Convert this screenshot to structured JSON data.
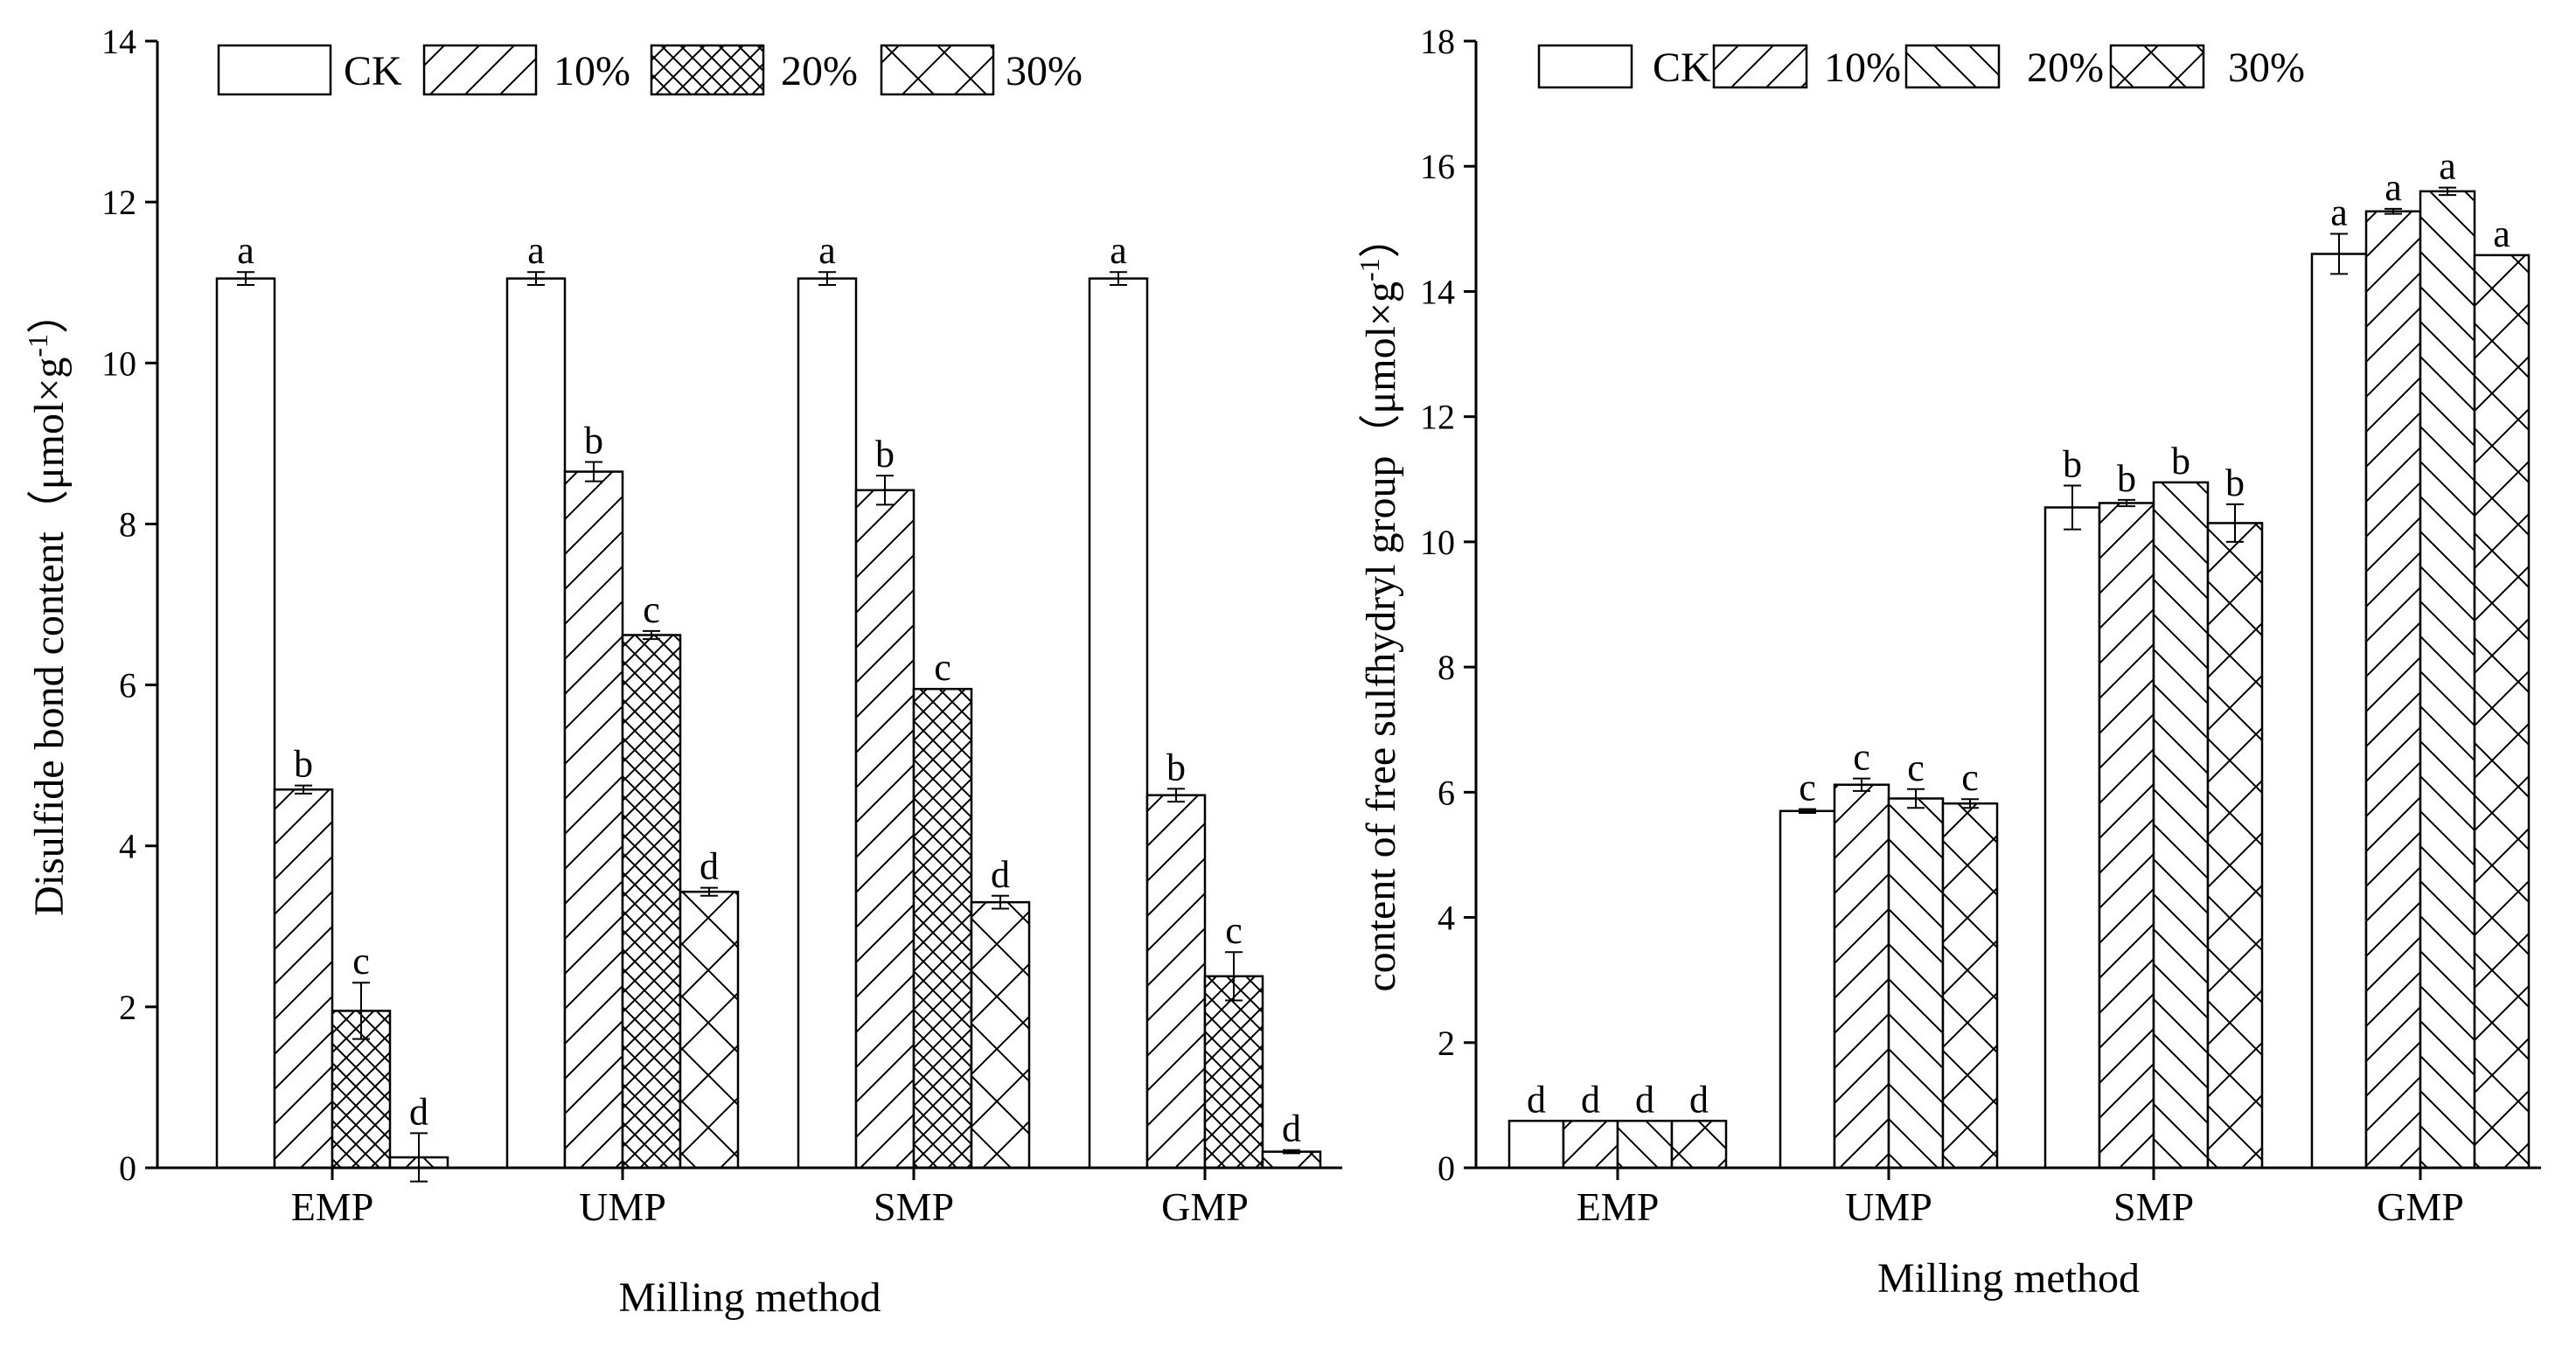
{
  "chart_data": [
    {
      "type": "bar",
      "title": "",
      "xlabel": "Milling method",
      "ylabel": "Disulfide bond content（μmol×g",
      "ylabel_sup": "-1",
      "ylabel_close": "）",
      "categories": [
        "EMP",
        "UMP",
        "SMP",
        "GMP"
      ],
      "ylim": [
        0,
        14
      ],
      "yticks": [
        "0",
        "2",
        "4",
        "6",
        "8",
        "10",
        "12",
        "14"
      ],
      "grid": false,
      "legend_position": "top",
      "series": [
        {
          "name": "CK",
          "pattern": "none",
          "values": [
            11.05,
            11.05,
            11.05,
            11.05
          ],
          "errors": [
            0.08,
            0.08,
            0.08,
            0.08
          ],
          "letters": [
            "a",
            "a",
            "a",
            "a"
          ]
        },
        {
          "name": "10%",
          "pattern": "hatch",
          "values": [
            4.7,
            8.65,
            8.42,
            4.63
          ],
          "errors": [
            0.05,
            0.12,
            0.18,
            0.08
          ],
          "letters": [
            "b",
            "b",
            "b",
            "b"
          ]
        },
        {
          "name": "20%",
          "pattern": "crosshatch",
          "values": [
            1.95,
            6.62,
            5.95,
            2.38
          ],
          "errors": [
            0.35,
            0.05,
            0.0,
            0.3
          ],
          "letters": [
            "c",
            "c",
            "c",
            "c"
          ]
        },
        {
          "name": "30%",
          "pattern": "bigx",
          "values": [
            0.13,
            3.43,
            3.3,
            0.2
          ],
          "errors": [
            0.3,
            0.05,
            0.08,
            0.02
          ],
          "letters": [
            "d",
            "d",
            "d",
            "d"
          ]
        }
      ]
    },
    {
      "type": "bar",
      "title": "",
      "xlabel": "Milling method",
      "ylabel": "content of free sulfhydryl group（μmol×g",
      "ylabel_sup": "-1",
      "ylabel_close": "）",
      "categories": [
        "EMP",
        "UMP",
        "SMP",
        "GMP"
      ],
      "ylim": [
        0,
        18
      ],
      "yticks": [
        "0",
        "2",
        "4",
        "6",
        "8",
        "10",
        "12",
        "14",
        "16",
        "18"
      ],
      "grid": false,
      "legend_position": "top",
      "series": [
        {
          "name": "CK",
          "pattern": "none",
          "values": [
            0.75,
            5.7,
            10.55,
            14.6
          ],
          "errors": [
            0.0,
            0.03,
            0.35,
            0.32
          ],
          "letters": [
            "d",
            "c",
            "b",
            "a"
          ]
        },
        {
          "name": "10%",
          "pattern": "hatch",
          "values": [
            0.75,
            6.12,
            10.62,
            15.28
          ],
          "errors": [
            0.0,
            0.1,
            0.05,
            0.04
          ],
          "letters": [
            "d",
            "c",
            "b",
            "a"
          ]
        },
        {
          "name": "20%",
          "pattern": "backhatch",
          "values": [
            0.75,
            5.9,
            10.95,
            15.6
          ],
          "errors": [
            0.0,
            0.15,
            0.0,
            0.06
          ],
          "letters": [
            "d",
            "c",
            "b",
            "a"
          ]
        },
        {
          "name": "30%",
          "pattern": "bigx",
          "values": [
            0.75,
            5.82,
            10.3,
            14.58
          ],
          "errors": [
            0.0,
            0.07,
            0.3,
            0.0
          ],
          "letters": [
            "d",
            "c",
            "b",
            "a"
          ]
        }
      ]
    }
  ]
}
